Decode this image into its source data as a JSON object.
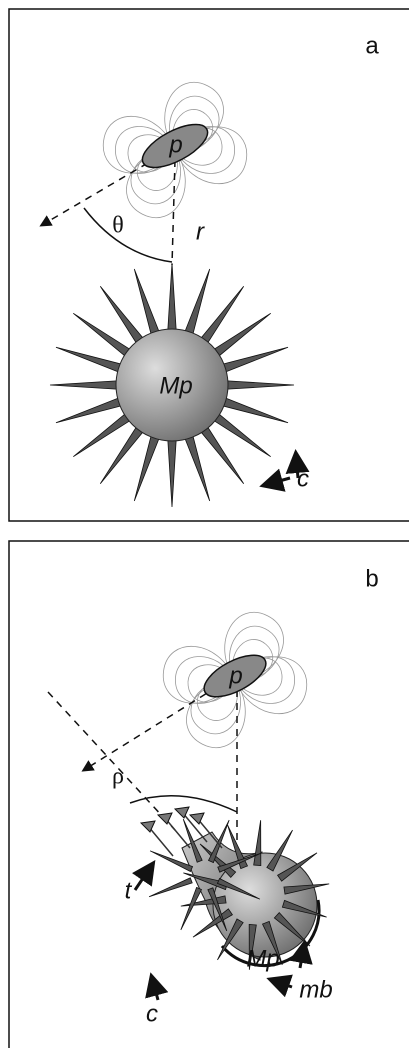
{
  "panels": [
    {
      "label": "a",
      "dipole": "p",
      "angle": "θ",
      "distance": "r",
      "particle": "Mp",
      "spike": "c"
    },
    {
      "label": "b",
      "dipole": "p",
      "angle": "ρ",
      "tube": "t",
      "particle": "Mp",
      "spike": "c",
      "membrane": "mb"
    }
  ]
}
